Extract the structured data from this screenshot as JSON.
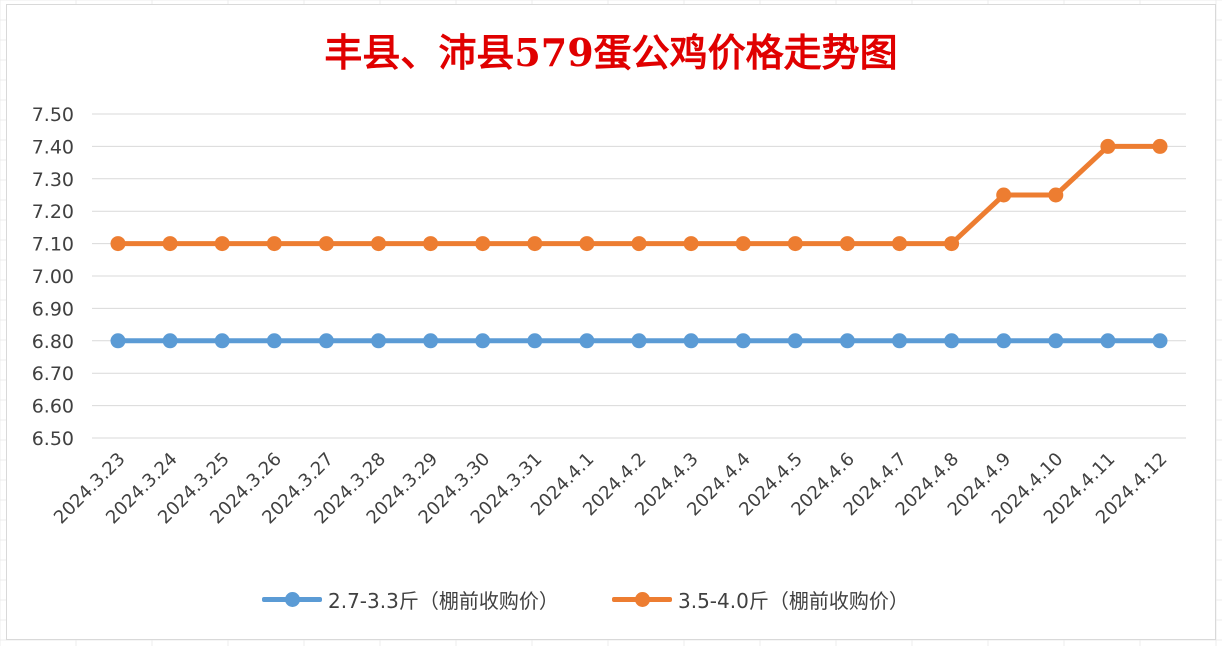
{
  "chart_data": {
    "type": "line",
    "title": "丰县、沛县579蛋公鸡价格走势图",
    "categories": [
      "2024.3.23",
      "2024.3.24",
      "2024.3.25",
      "2024.3.26",
      "2024.3.27",
      "2024.3.28",
      "2024.3.29",
      "2024.3.30",
      "2024.3.31",
      "2024.4.1",
      "2024.4.2",
      "2024.4.3",
      "2024.4.4",
      "2024.4.5",
      "2024.4.6",
      "2024.4.7",
      "2024.4.8",
      "2024.4.9",
      "2024.4.10",
      "2024.4.11",
      "2024.4.12"
    ],
    "yticks": [
      "7.50",
      "7.40",
      "7.30",
      "7.20",
      "7.10",
      "7.00",
      "6.90",
      "6.80",
      "6.70",
      "6.60",
      "6.50"
    ],
    "ylim": [
      6.5,
      7.5
    ],
    "grid": true,
    "legend_position": "bottom",
    "series": [
      {
        "name": "2.7-3.3斤（棚前收购价）",
        "color": "#5b9bd5",
        "values": [
          6.8,
          6.8,
          6.8,
          6.8,
          6.8,
          6.8,
          6.8,
          6.8,
          6.8,
          6.8,
          6.8,
          6.8,
          6.8,
          6.8,
          6.8,
          6.8,
          6.8,
          6.8,
          6.8,
          6.8,
          6.8
        ]
      },
      {
        "name": "3.5-4.0斤（棚前收购价）",
        "color": "#ed7d31",
        "values": [
          7.1,
          7.1,
          7.1,
          7.1,
          7.1,
          7.1,
          7.1,
          7.1,
          7.1,
          7.1,
          7.1,
          7.1,
          7.1,
          7.1,
          7.1,
          7.1,
          7.1,
          7.25,
          7.25,
          7.4,
          7.4
        ]
      }
    ]
  }
}
